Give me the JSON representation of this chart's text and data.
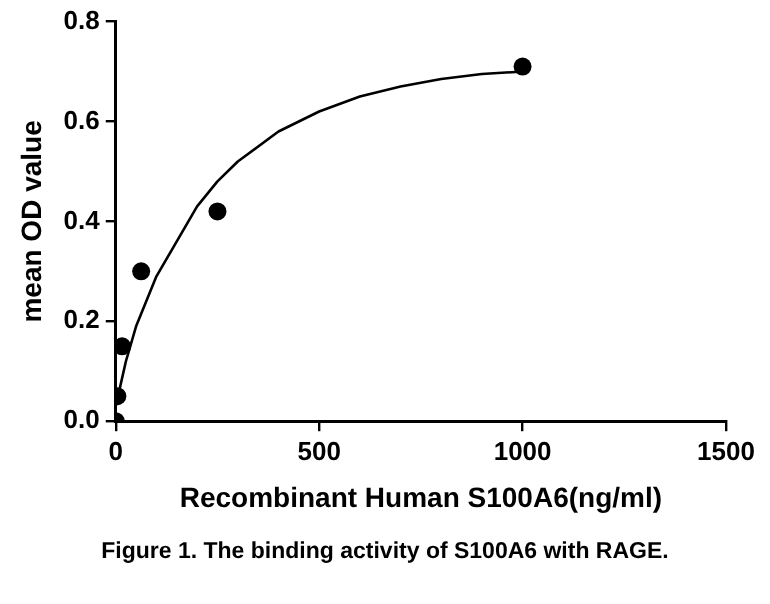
{
  "chart_data": {
    "type": "scatter",
    "xlabel": "Recombinant Human S100A6(ng/ml)",
    "ylabel": "mean OD value",
    "annotations": [
      "Figure 1. The binding activity of S100A6 with RAGE."
    ],
    "xlim": [
      0,
      1500
    ],
    "xticks": [
      0,
      500,
      1000,
      1500
    ],
    "ylim": [
      0,
      0.8
    ],
    "yticks": [
      {
        "value": 0,
        "label": "0.0"
      },
      0.2,
      0.4,
      0.6,
      0.8
    ],
    "grid": false,
    "legend": false,
    "marker": "circle",
    "series": [
      {
        "color": "#000000",
        "x": [
          0,
          3.9,
          15.6,
          62.5,
          250,
          1000
        ],
        "values": [
          0,
          0.05,
          0.15,
          0.3,
          0.42,
          0.71
        ]
      },
      {
        "type": "line",
        "color": "#000000",
        "marker": "none",
        "line_style": "solid",
        "x": [
          0,
          25,
          50,
          100,
          150,
          200,
          250,
          300,
          400,
          500,
          600,
          700,
          800,
          900,
          1000
        ],
        "values": [
          0.03,
          0.12,
          0.19,
          0.29,
          0.36,
          0.43,
          0.48,
          0.52,
          0.58,
          0.62,
          0.65,
          0.67,
          0.685,
          0.695,
          0.7
        ]
      }
    ]
  }
}
